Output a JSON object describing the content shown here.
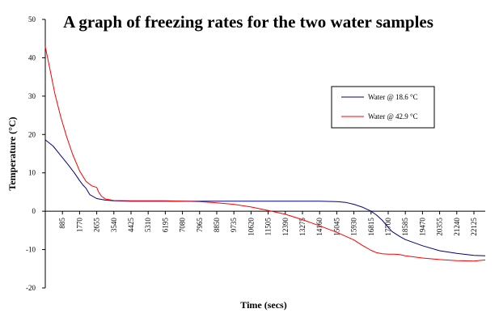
{
  "chart_data": {
    "type": "line",
    "title": "A graph of freezing rates for the two water samples",
    "xlabel": "Time (secs)",
    "ylabel": "Temperature (°C)",
    "xlim": [
      0,
      22710
    ],
    "ylim": [
      -20,
      50
    ],
    "yticks": [
      "50",
      "40",
      "30",
      "20",
      "10",
      "0",
      "-10",
      "-20"
    ],
    "ytick_values": [
      50,
      40,
      30,
      20,
      10,
      0,
      -10,
      -20
    ],
    "xtick_values": [
      885,
      1770,
      2655,
      3540,
      4425,
      5310,
      6195,
      7080,
      7965,
      8850,
      9735,
      10620,
      11505,
      12390,
      13275,
      14160,
      15045,
      15930,
      16815,
      17700,
      18585,
      19470,
      20355,
      21240,
      22125
    ],
    "xticks": [
      "885",
      "1770",
      "2655",
      "3540",
      "4425",
      "5310",
      "6195",
      "7080",
      "7965",
      "8850",
      "9735",
      "10620",
      "11505",
      "12390",
      "13275",
      "14160",
      "15045",
      "15930",
      "16815",
      "17700",
      "18585",
      "19470",
      "20355",
      "21240",
      "22125"
    ],
    "legend_position": "top-right",
    "grid": false,
    "series": [
      {
        "name": "Water @ 18.6 °C",
        "color": "#000080",
        "x": [
          0,
          400,
          800,
          1200,
          1500,
          1770,
          1950,
          2100,
          2300,
          2655,
          3100,
          3540,
          4425,
          5310,
          6195,
          7080,
          7965,
          8850,
          9735,
          10620,
          11505,
          12390,
          13275,
          14160,
          15045,
          15500,
          15930,
          16400,
          16815,
          17100,
          17400,
          17700,
          17900,
          18300,
          18585,
          19470,
          20355,
          21240,
          22125,
          22710
        ],
        "values": [
          18.6,
          17,
          14.5,
          12,
          10,
          8,
          6.8,
          6,
          4.3,
          3.3,
          2.9,
          2.7,
          2.6,
          2.6,
          2.6,
          2.6,
          2.6,
          2.6,
          2.6,
          2.6,
          2.6,
          2.6,
          2.6,
          2.6,
          2.5,
          2.3,
          1.8,
          1.0,
          0.0,
          -1.0,
          -2.4,
          -4.2,
          -5.3,
          -6.6,
          -7.4,
          -9.0,
          -10.3,
          -11.0,
          -11.5,
          -11.6
        ]
      },
      {
        "name": "Water @ 42.9 °C",
        "color": "#ff0000",
        "x": [
          0,
          200,
          500,
          800,
          1100,
          1400,
          1770,
          2100,
          2400,
          2655,
          2750,
          2900,
          3100,
          3540,
          4425,
          5310,
          6195,
          7080,
          7965,
          8850,
          9735,
          10620,
          11505,
          12390,
          13275,
          14160,
          15045,
          15930,
          16400,
          16815,
          17100,
          17400,
          17700,
          18000,
          18300,
          18585,
          19470,
          20355,
          21240,
          22125,
          22710
        ],
        "values": [
          42.9,
          38,
          30.5,
          24.5,
          19.5,
          15,
          10.5,
          7.8,
          6.6,
          6.2,
          5.0,
          3.9,
          3.2,
          2.8,
          2.7,
          2.7,
          2.7,
          2.6,
          2.5,
          2.2,
          1.8,
          1.1,
          0.2,
          -0.8,
          -2.2,
          -3.8,
          -5.5,
          -7.5,
          -9.0,
          -10.2,
          -10.8,
          -11.1,
          -11.2,
          -11.2,
          -11.3,
          -11.6,
          -12.2,
          -12.6,
          -12.9,
          -13.0,
          -12.7
        ]
      }
    ]
  }
}
